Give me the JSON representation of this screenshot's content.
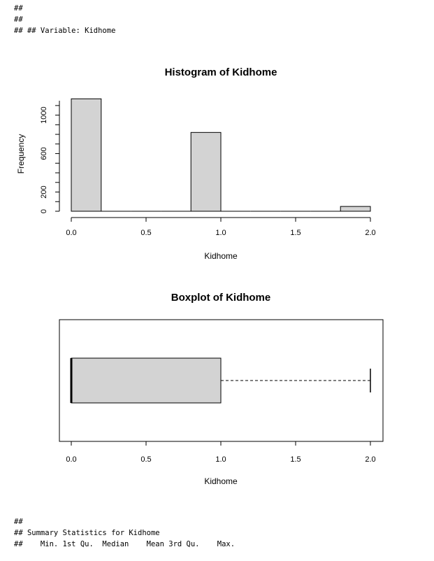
{
  "console_top": [
    "##",
    "##",
    "## ## Variable: Kidhome"
  ],
  "console_bottom": [
    "##",
    "## Summary Statistics for Kidhome",
    "##    Min. 1st Qu.  Median    Mean 3rd Qu.    Max."
  ],
  "chart_data": [
    {
      "type": "bar",
      "subtype": "histogram",
      "title": "Histogram of Kidhome",
      "xlabel": "Kidhome",
      "ylabel": "Frequency",
      "xlim": [
        0,
        2
      ],
      "ylim": [
        0,
        1150
      ],
      "xticks": [
        0,
        0.5,
        1,
        1.5,
        2
      ],
      "xtick_labels": [
        "0.0",
        "0.5",
        "1.0",
        "1.5",
        "2.0"
      ],
      "yticks": [
        0,
        200,
        600,
        1000
      ],
      "ytick_labels": [
        "0",
        "200",
        "600",
        "1000"
      ],
      "bins": [
        [
          0,
          0.2
        ],
        [
          0.2,
          0.4
        ],
        [
          0.4,
          0.6
        ],
        [
          0.6,
          0.8
        ],
        [
          0.8,
          1.0
        ],
        [
          1.0,
          1.2
        ],
        [
          1.2,
          1.4
        ],
        [
          1.4,
          1.6
        ],
        [
          1.6,
          1.8
        ],
        [
          1.8,
          2.0
        ]
      ],
      "values": [
        1170,
        0,
        0,
        0,
        820,
        0,
        0,
        0,
        0,
        50
      ]
    },
    {
      "type": "boxplot",
      "orientation": "horizontal",
      "title": "Boxplot of Kidhome",
      "xlabel": "Kidhome",
      "xlim": [
        0,
        2
      ],
      "xticks": [
        0,
        0.5,
        1,
        1.5,
        2
      ],
      "xtick_labels": [
        "0.0",
        "0.5",
        "1.0",
        "1.5",
        "2.0"
      ],
      "stats": {
        "min": 0,
        "q1": 0,
        "median": 0,
        "q3": 1,
        "max": 2
      }
    }
  ],
  "colors": {
    "fill": "#d3d3d3",
    "stroke": "#000000"
  }
}
